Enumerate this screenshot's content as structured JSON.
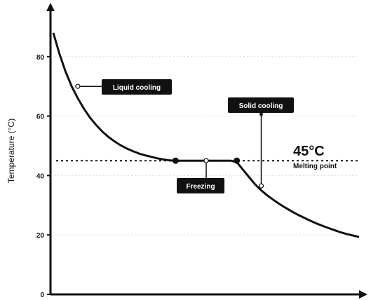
{
  "chart_data": {
    "type": "line",
    "ylabel": "Temperature (°C)",
    "xlabel": "",
    "ylim": [
      0,
      90
    ],
    "yticks": [
      "0",
      "20",
      "40",
      "60",
      "80"
    ],
    "grid": true,
    "series": [
      {
        "x": [
          0,
          1,
          2,
          3,
          4,
          5,
          6,
          7,
          8,
          9,
          10,
          11,
          12,
          13,
          14,
          15,
          16,
          17,
          18,
          19,
          20,
          21,
          22,
          23,
          24,
          25,
          26,
          27,
          28,
          29,
          30,
          31,
          32,
          33,
          34,
          35,
          36,
          37,
          38,
          39,
          40,
          41,
          42,
          43,
          44,
          45,
          46,
          47,
          48,
          49,
          50
        ],
        "y": [
          88,
          81,
          75,
          70,
          66,
          62.5,
          59.5,
          57,
          54.8,
          53,
          51.5,
          50.2,
          49.1,
          48.2,
          47.4,
          46.8,
          46.3,
          45.8,
          45.4,
          45.1,
          45,
          45,
          45,
          45,
          45,
          45,
          45,
          45,
          45,
          45,
          44.5,
          42,
          39.5,
          37,
          35,
          33.3,
          31.8,
          30.4,
          29.1,
          27.9,
          26.8,
          25.8,
          24.8,
          23.9,
          23.1,
          22.3,
          21.6,
          20.9,
          20.3,
          19.8,
          19.3
        ]
      }
    ],
    "markers": [
      {
        "x": 20,
        "y": 45
      },
      {
        "x": 30,
        "y": 45
      }
    ],
    "reference_line": {
      "y": 45,
      "style": "dotted"
    },
    "annotations": [
      {
        "text": "Liquid cooling",
        "x": 4,
        "y": 70
      },
      {
        "text": "Freezing",
        "x": 25,
        "y": 45
      },
      {
        "text": "Solid cooling",
        "x": 34,
        "y": 36.5
      }
    ],
    "melting_point": {
      "value": "45°C",
      "label": "Melting point"
    }
  }
}
